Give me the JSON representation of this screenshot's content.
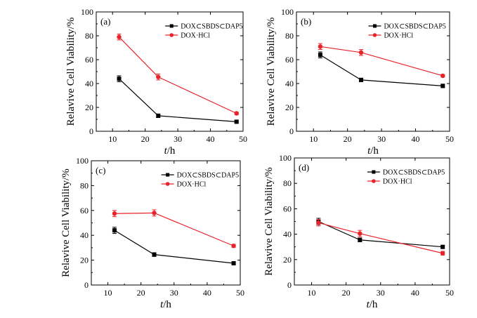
{
  "colors": {
    "series_1": "#000000",
    "series_2": "#e8242b"
  },
  "chart_data": [
    {
      "type": "line",
      "panel": "(a)",
      "xlabel": "t/h",
      "ylabel": "Relavive Cell Viability/%",
      "xlim": [
        5,
        50
      ],
      "ylim": [
        0,
        100
      ],
      "xticks": [
        10,
        20,
        30,
        40,
        50
      ],
      "yticks": [
        0,
        20,
        40,
        60,
        80,
        100
      ],
      "legend": "top-right",
      "x": [
        12,
        24,
        48
      ],
      "series": [
        {
          "name": "DOX⊂SBDS⊂DAP5",
          "values": [
            44,
            13,
            8
          ],
          "errors": [
            2.5,
            1.5,
            1
          ],
          "marker": "square"
        },
        {
          "name": "DOX·HCl",
          "values": [
            79,
            45.5,
            15
          ],
          "errors": [
            2.5,
            2.5,
            1
          ],
          "marker": "circle"
        }
      ]
    },
    {
      "type": "line",
      "panel": "(b)",
      "xlabel": "t/h",
      "ylabel": "Relavive Cell Viability/%",
      "xlim": [
        5,
        50
      ],
      "ylim": [
        0,
        100
      ],
      "xticks": [
        10,
        20,
        30,
        40,
        50
      ],
      "yticks": [
        0,
        20,
        40,
        60,
        80,
        100
      ],
      "legend": "top-right",
      "x": [
        12,
        24,
        48
      ],
      "series": [
        {
          "name": "DOX⊂SBDS⊂DAP5",
          "values": [
            64,
            43,
            38
          ],
          "errors": [
            2.5,
            1.5,
            1.5
          ],
          "marker": "square"
        },
        {
          "name": "DOX·HCl",
          "values": [
            71,
            66,
            46.5
          ],
          "errors": [
            2.5,
            2.5,
            1
          ],
          "marker": "circle"
        }
      ]
    },
    {
      "type": "line",
      "panel": "(c)",
      "xlabel": "t/h",
      "ylabel": "Relavive Cell Viability/%",
      "xlim": [
        5,
        50
      ],
      "ylim": [
        0,
        100
      ],
      "xticks": [
        10,
        20,
        30,
        40,
        50
      ],
      "yticks": [
        0,
        20,
        40,
        60,
        80,
        100
      ],
      "legend": "top-right",
      "x": [
        12,
        24,
        48
      ],
      "series": [
        {
          "name": "DOX⊂SBDS⊂DAP5",
          "values": [
            44,
            24.5,
            17.5
          ],
          "errors": [
            2.5,
            1.5,
            0.8
          ],
          "marker": "square"
        },
        {
          "name": "DOX·HCl",
          "values": [
            57.5,
            58,
            31.5
          ],
          "errors": [
            2.5,
            2.5,
            1.2
          ],
          "marker": "circle"
        }
      ]
    },
    {
      "type": "line",
      "panel": "(d)",
      "xlabel": "t/h",
      "ylabel": "Relavive Cell Viability/%",
      "xlim": [
        5,
        50
      ],
      "ylim": [
        0,
        100
      ],
      "xticks": [
        10,
        20,
        30,
        40,
        50
      ],
      "yticks": [
        0,
        20,
        40,
        60,
        80,
        100
      ],
      "legend": "top-right",
      "x": [
        12,
        24,
        48
      ],
      "series": [
        {
          "name": "DOX⊂SBDS⊂DAP5",
          "values": [
            50,
            35.5,
            30
          ],
          "errors": [
            2.5,
            1.5,
            1.2
          ],
          "marker": "square"
        },
        {
          "name": "DOX·HCl",
          "values": [
            49,
            40.5,
            25
          ],
          "errors": [
            2.5,
            2.5,
            1.5
          ],
          "marker": "circle"
        }
      ]
    }
  ]
}
